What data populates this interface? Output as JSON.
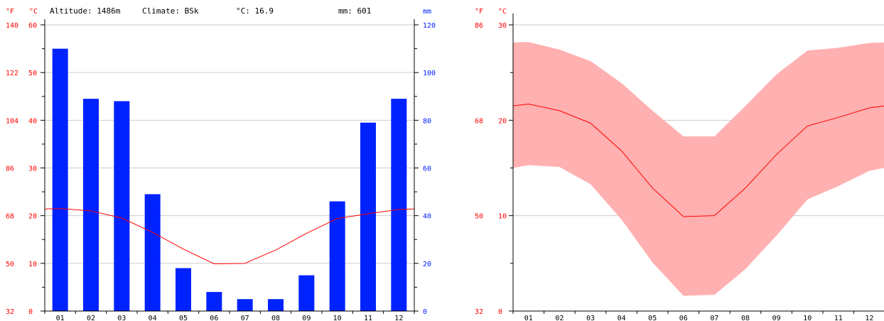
{
  "header": {
    "altitude": "Altitude: 1486m",
    "climate": "Climate: BSk",
    "temp": "°C: 16.9",
    "precip": "mm: 601"
  },
  "colors": {
    "temperature": "#ff0000",
    "precipitation_bar": "#0022ff",
    "precipitation_axis": "#0022ff",
    "range_fill": "#ffb0b0",
    "grid": "#cccccc"
  },
  "chart_data": [
    {
      "type": "bar",
      "categories": [
        "01",
        "02",
        "03",
        "04",
        "05",
        "06",
        "07",
        "08",
        "09",
        "10",
        "11",
        "12"
      ],
      "series": [
        {
          "values": [
            110,
            89,
            88,
            49,
            18,
            8,
            5,
            5,
            15,
            46,
            79,
            89
          ]
        },
        {
          "values": [
            21.5,
            21.0,
            19.5,
            16.5,
            13.0,
            9.9,
            10.0,
            12.8,
            16.3,
            19.4,
            20.4,
            21.3
          ]
        }
      ],
      "y_left_c": {
        "label": "°C",
        "ticks": [
          0,
          10,
          20,
          30,
          40,
          50,
          60
        ],
        "range": [
          0,
          60
        ]
      },
      "y_left_f": {
        "label": "°F",
        "ticks": [
          32,
          50,
          68,
          86,
          104,
          122,
          140
        ]
      },
      "y_right_mm": {
        "label": "mm",
        "ticks": [
          0,
          20,
          40,
          60,
          80,
          100,
          120
        ],
        "range": [
          0,
          120
        ]
      }
    },
    {
      "type": "area",
      "categories": [
        "01",
        "02",
        "03",
        "04",
        "05",
        "06",
        "07",
        "08",
        "09",
        "10",
        "11",
        "12"
      ],
      "series": [
        {
          "values": [
            21.7,
            21.0,
            19.7,
            16.8,
            12.9,
            9.9,
            10.0,
            12.9,
            16.4,
            19.4,
            20.3,
            21.3
          ]
        },
        {
          "values": [
            28.2,
            27.4,
            26.2,
            23.9,
            21.0,
            18.3,
            18.3,
            21.5,
            24.8,
            27.3,
            27.6,
            28.1
          ]
        },
        {
          "values": [
            15.3,
            15.1,
            13.3,
            9.6,
            5.1,
            1.6,
            1.7,
            4.4,
            7.9,
            11.7,
            13.1,
            14.7
          ]
        }
      ],
      "y_left_c": {
        "label": "°C",
        "ticks": [
          0,
          10,
          20,
          30
        ],
        "range": [
          0,
          30
        ]
      },
      "y_left_f": {
        "label": "°F",
        "ticks": [
          32,
          50,
          68,
          86
        ]
      }
    }
  ]
}
